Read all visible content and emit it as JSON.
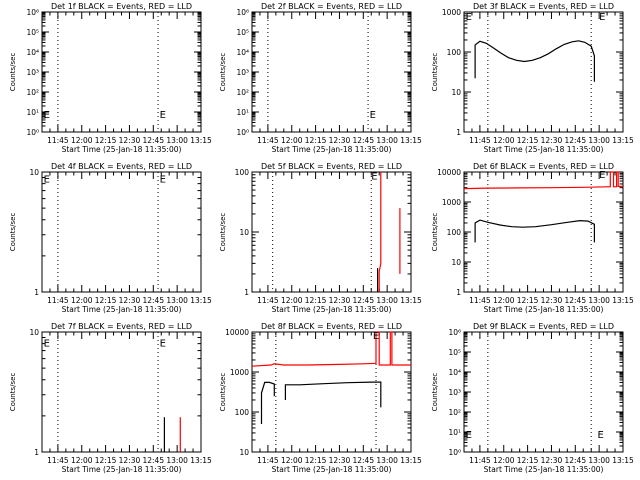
{
  "chart_data": [
    {
      "type": "line",
      "title": "Det 1f BLACK = Events, RED = LLD",
      "xlabel": "Start Time (25-Jan-18 11:35:00)",
      "ylabel": "Counts/sec",
      "x_tick_labels": [
        "11:45",
        "12:00",
        "12:15",
        "12:30",
        "12:45",
        "13:00",
        "13:15"
      ],
      "xlim": [
        "11:35",
        "13:15"
      ],
      "y_scale": "log",
      "ylim": [
        1,
        1000000
      ],
      "y_tick_labels": [
        "10⁰",
        "10¹",
        "10²",
        "10³",
        "10⁴",
        "10⁵",
        "10⁶"
      ],
      "y_tick_values": [
        1,
        10,
        100,
        1000,
        10000,
        100000,
        1000000
      ],
      "markers": [
        {
          "x": "11:36",
          "y": 8,
          "label": "E"
        },
        {
          "x": "12:49",
          "y": 8,
          "label": "E"
        }
      ],
      "vlines": [
        "11:45",
        "12:48"
      ],
      "series": []
    },
    {
      "type": "line",
      "title": "Det 2f BLACK = Events, RED = LLD",
      "xlabel": "Start Time (25-Jan-18 11:35:00)",
      "ylabel": "Counts/sec",
      "x_tick_labels": [
        "11:45",
        "12:00",
        "12:15",
        "12:30",
        "12:45",
        "13:00",
        "13:15"
      ],
      "xlim": [
        "11:35",
        "13:15"
      ],
      "y_scale": "log",
      "ylim": [
        1,
        1000000
      ],
      "y_tick_labels": [
        "10⁰",
        "10¹",
        "10²",
        "10³",
        "10⁴",
        "10⁵",
        "10⁶"
      ],
      "y_tick_values": [
        1,
        10,
        100,
        1000,
        10000,
        100000,
        1000000
      ],
      "markers": [
        {
          "x": "12:49",
          "y": 8,
          "label": "E"
        }
      ],
      "vlines": [
        "11:45",
        "12:48"
      ],
      "series": []
    },
    {
      "type": "line",
      "title": "Det 3f BLACK = Events, RED = LLD",
      "xlabel": "Start Time (25-Jan-18 11:35:00)",
      "ylabel": "Counts/sec",
      "x_tick_labels": [
        "11:45",
        "12:00",
        "12:15",
        "12:30",
        "12:45",
        "13:00",
        "13:15"
      ],
      "xlim": [
        "11:35",
        "13:15"
      ],
      "y_scale": "log",
      "ylim": [
        1,
        1000
      ],
      "y_tick_labels": [
        "1",
        "10",
        "100",
        "1000"
      ],
      "y_tick_values": [
        1,
        10,
        100,
        1000
      ],
      "markers": [
        {
          "x": "11:36",
          "y": 800,
          "label": "E"
        },
        {
          "x": "13:00",
          "y": 800,
          "label": "E"
        }
      ],
      "vlines": [
        "11:50",
        "12:55"
      ],
      "series": [
        {
          "color": "#000000",
          "segments": [
            [
              [
                "11:42",
                22
              ],
              [
                "11:42",
                150
              ],
              [
                "11:45",
                185
              ],
              [
                "11:49",
                165
              ],
              [
                "11:53",
                130
              ],
              [
                "11:58",
                95
              ],
              [
                "12:03",
                72
              ],
              [
                "12:08",
                62
              ],
              [
                "12:13",
                58
              ],
              [
                "12:18",
                62
              ],
              [
                "12:23",
                72
              ],
              [
                "12:28",
                90
              ],
              [
                "12:33",
                120
              ],
              [
                "12:38",
                155
              ],
              [
                "12:43",
                180
              ],
              [
                "12:47",
                190
              ],
              [
                "12:51",
                175
              ],
              [
                "12:55",
                140
              ],
              [
                "12:57",
                80
              ],
              [
                "12:57",
                18
              ]
            ]
          ]
        }
      ]
    },
    {
      "type": "line",
      "title": "Det 4f BLACK = Events, RED = LLD",
      "xlabel": "Start Time (25-Jan-18 11:35:00)",
      "ylabel": "Counts/sec",
      "x_tick_labels": [
        "11:45",
        "12:00",
        "12:15",
        "12:30",
        "12:45",
        "13:00",
        "13:15"
      ],
      "xlim": [
        "11:35",
        "13:15"
      ],
      "y_scale": "log",
      "ylim": [
        1,
        10
      ],
      "y_tick_labels": [
        "1",
        "10"
      ],
      "y_tick_values": [
        1,
        10
      ],
      "markers": [
        {
          "x": "11:36",
          "y": 8.8,
          "label": "E"
        },
        {
          "x": "12:49",
          "y": 8.8,
          "label": "E"
        }
      ],
      "vlines": [
        "11:45",
        "12:48"
      ],
      "series": []
    },
    {
      "type": "line",
      "title": "Det 5f BLACK = Events, RED = LLD",
      "xlabel": "Start Time (25-Jan-18 11:35:00)",
      "ylabel": "Counts/sec",
      "x_tick_labels": [
        "11:45",
        "12:00",
        "12:15",
        "12:30",
        "12:45",
        "13:00",
        "13:15"
      ],
      "xlim": [
        "11:35",
        "13:15"
      ],
      "y_scale": "log",
      "ylim": [
        1,
        100
      ],
      "y_tick_labels": [
        "1",
        "10",
        "100"
      ],
      "y_tick_values": [
        1,
        10,
        100
      ],
      "markers": [
        {
          "x": "12:50",
          "y": 88,
          "label": "E"
        }
      ],
      "vlines": [
        "11:48",
        "12:50"
      ],
      "series": [
        {
          "color": "#000000",
          "segments": [
            [
              [
                "12:54",
                1
              ],
              [
                "12:54",
                2.5
              ]
            ]
          ]
        },
        {
          "color": "#ff0000",
          "segments": [
            [
              [
                "12:55",
                1
              ],
              [
                "12:55",
                2.2
              ],
              [
                "12:56",
                3
              ],
              [
                "12:56",
                100
              ]
            ],
            [
              [
                "13:08",
                2
              ],
              [
                "13:08",
                25
              ]
            ]
          ]
        }
      ]
    },
    {
      "type": "line",
      "title": "Det 6f BLACK = Events, RED = LLD",
      "xlabel": "Start Time (25-Jan-18 11:35:00)",
      "ylabel": "Counts/sec",
      "x_tick_labels": [
        "11:45",
        "12:00",
        "12:15",
        "12:30",
        "12:45",
        "13:00",
        "13:15"
      ],
      "xlim": [
        "11:35",
        "13:15"
      ],
      "y_scale": "log",
      "ylim": [
        1,
        10000
      ],
      "y_tick_labels": [
        "1",
        "10",
        "100",
        "1000",
        "10000"
      ],
      "y_tick_values": [
        1,
        10,
        100,
        1000,
        10000
      ],
      "markers": [
        {
          "x": "13:00",
          "y": 8500,
          "label": "E"
        }
      ],
      "vlines": [
        "11:50",
        "12:55"
      ],
      "series": [
        {
          "color": "#ff0000",
          "segments": [
            [
              [
                "11:35",
                2800
              ],
              [
                "11:50",
                2900
              ],
              [
                "12:10",
                2950
              ],
              [
                "12:30",
                3000
              ],
              [
                "12:50",
                3100
              ],
              [
                "13:05",
                3200
              ],
              [
                "13:07",
                3200
              ],
              [
                "13:07",
                10000
              ],
              [
                "13:09",
                10000
              ],
              [
                "13:09",
                3200
              ],
              [
                "13:11",
                3200
              ],
              [
                "13:11",
                10000
              ],
              [
                "13:12",
                10000
              ],
              [
                "13:12",
                3300
              ],
              [
                "13:15",
                3300
              ]
            ]
          ]
        },
        {
          "color": "#000000",
          "segments": [
            [
              [
                "11:42",
                45
              ],
              [
                "11:42",
                200
              ],
              [
                "11:45",
                250
              ],
              [
                "11:50",
                210
              ],
              [
                "11:58",
                170
              ],
              [
                "12:05",
                150
              ],
              [
                "12:12",
                145
              ],
              [
                "12:20",
                150
              ],
              [
                "12:30",
                175
              ],
              [
                "12:40",
                210
              ],
              [
                "12:48",
                240
              ],
              [
                "12:53",
                230
              ],
              [
                "12:57",
                180
              ],
              [
                "12:57",
                45
              ]
            ]
          ]
        }
      ]
    },
    {
      "type": "line",
      "title": "Det 7f BLACK = Events, RED = LLD",
      "xlabel": "Start Time (25-Jan-18 11:35:00)",
      "ylabel": "Counts/sec",
      "x_tick_labels": [
        "11:45",
        "12:00",
        "12:15",
        "12:30",
        "12:45",
        "13:00",
        "13:15"
      ],
      "xlim": [
        "11:35",
        "13:15"
      ],
      "y_scale": "log",
      "ylim": [
        1,
        10
      ],
      "y_tick_labels": [
        "1",
        "10"
      ],
      "y_tick_values": [
        1,
        10
      ],
      "markers": [
        {
          "x": "11:36",
          "y": 8.2,
          "label": "E"
        },
        {
          "x": "12:49",
          "y": 8.2,
          "label": "E"
        }
      ],
      "vlines": [
        "11:45",
        "12:48"
      ],
      "series": [
        {
          "color": "#000000",
          "segments": [
            [
              [
                "12:52",
                1
              ],
              [
                "12:52",
                1.95
              ]
            ]
          ]
        },
        {
          "color": "#ff0000",
          "segments": [
            [
              [
                "13:02",
                1
              ],
              [
                "13:02",
                1.95
              ]
            ]
          ]
        }
      ]
    },
    {
      "type": "line",
      "title": "Det 8f BLACK = Events, RED = LLD",
      "xlabel": "Start Time (25-Jan-18 11:35:00)",
      "ylabel": "Counts/sec",
      "x_tick_labels": [
        "11:45",
        "12:00",
        "12:15",
        "12:30",
        "12:45",
        "13:00",
        "13:15"
      ],
      "xlim": [
        "11:35",
        "13:15"
      ],
      "y_scale": "log",
      "ylim": [
        10,
        10000
      ],
      "y_tick_labels": [
        "10",
        "100",
        "1000",
        "10000"
      ],
      "y_tick_values": [
        10,
        100,
        1000,
        10000
      ],
      "markers": [
        {
          "x": "12:51",
          "y": 8500,
          "label": "E"
        }
      ],
      "vlines": [
        "11:50",
        "12:53"
      ],
      "series": [
        {
          "color": "#ff0000",
          "segments": [
            [
              [
                "11:35",
                1400
              ],
              [
                "11:47",
                1500
              ],
              [
                "11:49",
                1600
              ],
              [
                "11:55",
                1500
              ],
              [
                "12:10",
                1500
              ],
              [
                "12:30",
                1550
              ],
              [
                "12:45",
                1600
              ],
              [
                "12:53",
                1650
              ],
              [
                "12:53",
                10000
              ],
              [
                "12:55",
                10000
              ],
              [
                "12:55",
                1500
              ],
              [
                "13:02",
                1500
              ],
              [
                "13:02",
                10000
              ],
              [
                "13:03",
                10000
              ],
              [
                "13:03",
                1500
              ],
              [
                "13:15",
                1500
              ]
            ]
          ]
        },
        {
          "color": "#000000",
          "segments": [
            [
              [
                "11:41",
                50
              ],
              [
                "11:41",
                300
              ],
              [
                "11:43",
                550
              ],
              [
                "11:46",
                550
              ],
              [
                "11:49",
                500
              ],
              [
                "11:49",
                250
              ]
            ],
            [
              [
                "11:56",
                200
              ],
              [
                "11:56",
                480
              ],
              [
                "12:05",
                480
              ],
              [
                "12:20",
                510
              ],
              [
                "12:35",
                540
              ],
              [
                "12:50",
                560
              ],
              [
                "12:56",
                560
              ],
              [
                "12:56",
                130
              ]
            ]
          ]
        }
      ]
    },
    {
      "type": "line",
      "title": "Det 9f BLACK = Events, RED = LLD",
      "xlabel": "Start Time (25-Jan-18 11:35:00)",
      "ylabel": "Counts/sec",
      "x_tick_labels": [
        "11:45",
        "12:00",
        "12:15",
        "12:30",
        "12:45",
        "13:00",
        "13:15"
      ],
      "xlim": [
        "11:35",
        "13:15"
      ],
      "y_scale": "log",
      "ylim": [
        1,
        1000000
      ],
      "y_tick_labels": [
        "10⁰",
        "10¹",
        "10²",
        "10³",
        "10⁴",
        "10⁵",
        "10⁶"
      ],
      "y_tick_values": [
        1,
        10,
        100,
        1000,
        10000,
        100000,
        1000000
      ],
      "markers": [
        {
          "x": "11:36",
          "y": 8,
          "label": "E"
        },
        {
          "x": "12:59",
          "y": 8,
          "label": "E"
        }
      ],
      "vlines": [
        "11:50",
        "12:55"
      ],
      "series": []
    }
  ]
}
